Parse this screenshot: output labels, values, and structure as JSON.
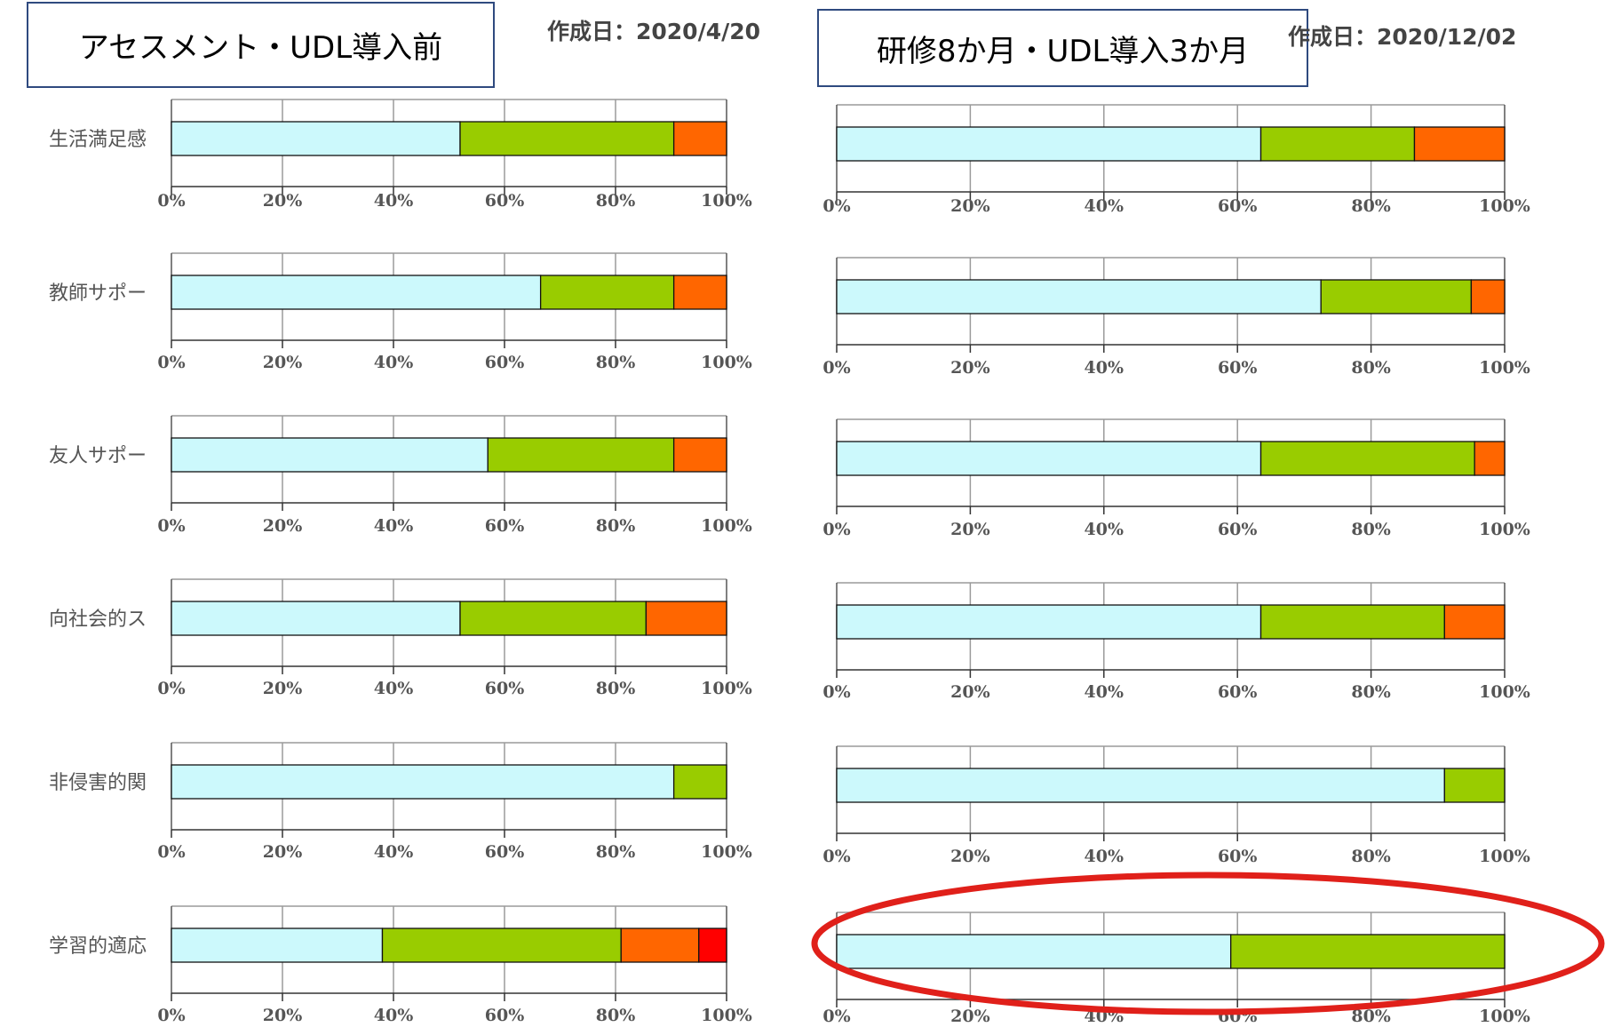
{
  "left_panel": {
    "title": "アセスメント・UDL導入前",
    "date_label": "作成日：2020/4/20"
  },
  "right_panel": {
    "title": "研修8か月・UDL導入3か月",
    "date_label": "作成日：2020/12/02"
  },
  "colors": [
    "#ccf9fc",
    "#99cc00",
    "#ff6600",
    "#ff0000"
  ],
  "highlight_color": "#e0201a",
  "chart_data": [
    {
      "type": "bar",
      "orientation": "horizontal",
      "stacked": true,
      "percent": true,
      "panel": "left",
      "title": "アセスメント・UDL導入前",
      "categories": [
        "生活満足感",
        "教師サポー",
        "友人サポー",
        "向社会的ス",
        "非侵害的関",
        "学習的適応"
      ],
      "series": [
        {
          "values": [
            52,
            66.5,
            57,
            52,
            90.5,
            38
          ]
        },
        {
          "values": [
            38.5,
            24,
            33.5,
            33.5,
            9.5,
            43
          ]
        },
        {
          "values": [
            9.5,
            9.5,
            9.5,
            14.5,
            0,
            14
          ]
        },
        {
          "values": [
            0,
            0,
            0,
            0,
            0,
            5
          ]
        }
      ],
      "xticks": [
        "0%",
        "20%",
        "40%",
        "60%",
        "80%",
        "100%"
      ],
      "xlim": [
        0,
        100
      ],
      "grid": true
    },
    {
      "type": "bar",
      "orientation": "horizontal",
      "stacked": true,
      "percent": true,
      "panel": "right",
      "title": "研修8か月・UDL導入3か月",
      "categories": [
        "生活満足感",
        "教師サポー",
        "友人サポー",
        "向社会的ス",
        "非侵害的関",
        "学習的適応"
      ],
      "series": [
        {
          "values": [
            63.5,
            72.5,
            63.5,
            63.5,
            91,
            59
          ]
        },
        {
          "values": [
            23,
            22.5,
            32,
            27.5,
            9,
            41
          ]
        },
        {
          "values": [
            13.5,
            5,
            4.5,
            9,
            0,
            0
          ]
        },
        {
          "values": [
            0,
            0,
            0,
            0,
            0,
            0
          ]
        }
      ],
      "xticks": [
        "0%",
        "20%",
        "40%",
        "60%",
        "80%",
        "100%"
      ],
      "xlim": [
        0,
        100
      ],
      "grid": true,
      "highlighted_category": "学習的適応"
    }
  ]
}
